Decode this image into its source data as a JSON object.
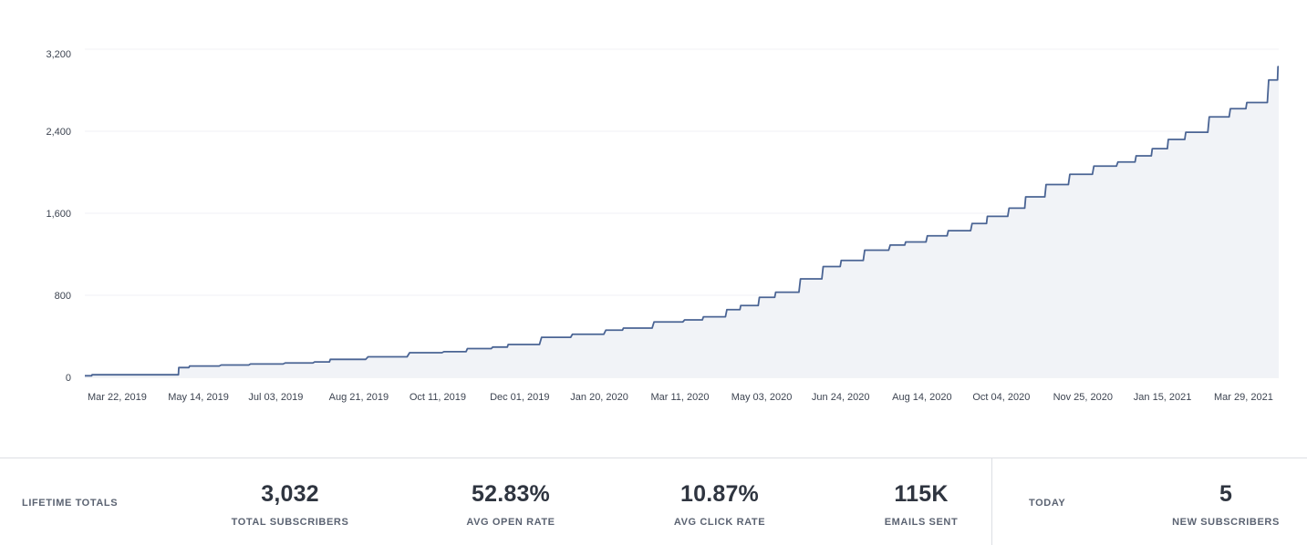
{
  "chart_data": {
    "type": "area",
    "title": "",
    "xlabel": "",
    "ylabel": "",
    "ylim": [
      0,
      3200
    ],
    "y_ticks": [
      "0",
      "800",
      "1,600",
      "2,400",
      "3,200"
    ],
    "y_tick_values": [
      0,
      800,
      1600,
      2400,
      3200
    ],
    "x_ticks": [
      "Mar 22, 2019",
      "May 14, 2019",
      "Jul 03, 2019",
      "Aug 21, 2019",
      "Oct 11, 2019",
      "Dec 01, 2019",
      "Jan 20, 2020",
      "Mar 11, 2020",
      "May 03, 2020",
      "Jun 24, 2020",
      "Aug 14, 2020",
      "Oct 04, 2020",
      "Nov 25, 2020",
      "Jan 15, 2021",
      "Mar 29, 2021"
    ],
    "grid": true,
    "line_color": "#4a6494",
    "fill_color": "#f1f3f7",
    "series": [
      {
        "x": [
          "Mar 20, 2019",
          "Mar 25, 2019",
          "Apr 15, 2019",
          "May 14, 2019",
          "May 18, 2019",
          "May 25, 2019",
          "Jun 15, 2019",
          "Jul 03, 2019",
          "Jul 25, 2019",
          "Aug 12, 2019",
          "Aug 21, 2019",
          "Sep 15, 2019",
          "Oct 11, 2019",
          "Nov 01, 2019",
          "Nov 15, 2019",
          "Dec 01, 2019",
          "Dec 10, 2019",
          "Jan 01, 2020",
          "Jan 20, 2020",
          "Feb 10, 2020",
          "Feb 20, 2020",
          "Mar 11, 2020",
          "Mar 30, 2020",
          "Apr 10, 2020",
          "Apr 25, 2020",
          "May 03, 2020",
          "May 15, 2020",
          "May 25, 2020",
          "Jun 10, 2020",
          "Jun 24, 2020",
          "Jul 05, 2020",
          "Jul 20, 2020",
          "Aug 05, 2020",
          "Aug 14, 2020",
          "Aug 28, 2020",
          "Sep 10, 2020",
          "Sep 25, 2020",
          "Oct 04, 2020",
          "Oct 18, 2020",
          "Oct 28, 2020",
          "Nov 10, 2020",
          "Nov 25, 2020",
          "Dec 10, 2020",
          "Dec 25, 2020",
          "Jan 05, 2021",
          "Jan 15, 2021",
          "Jan 25, 2021",
          "Feb 05, 2021",
          "Feb 20, 2021",
          "Mar 05, 2021",
          "Mar 15, 2021",
          "Mar 29, 2021",
          "Apr 03, 2021"
        ],
        "values": [
          15,
          25,
          25,
          25,
          95,
          110,
          120,
          130,
          140,
          150,
          175,
          200,
          240,
          250,
          280,
          295,
          320,
          390,
          420,
          460,
          480,
          540,
          560,
          590,
          660,
          700,
          780,
          830,
          960,
          1080,
          1140,
          1240,
          1290,
          1320,
          1380,
          1430,
          1500,
          1570,
          1650,
          1760,
          1880,
          1980,
          2060,
          2100,
          2160,
          2230,
          2320,
          2390,
          2540,
          2620,
          2680,
          2900,
          3030
        ]
      }
    ]
  },
  "stats": {
    "lifetime_label": "LIFETIME TOTALS",
    "items": [
      {
        "value": "3,032",
        "label": "TOTAL SUBSCRIBERS"
      },
      {
        "value": "52.83%",
        "label": "AVG OPEN RATE"
      },
      {
        "value": "10.87%",
        "label": "AVG CLICK RATE"
      },
      {
        "value": "115K",
        "label": "EMAILS SENT"
      }
    ],
    "today_label": "TODAY",
    "today_item": {
      "value": "5",
      "label": "NEW SUBSCRIBERS"
    }
  }
}
